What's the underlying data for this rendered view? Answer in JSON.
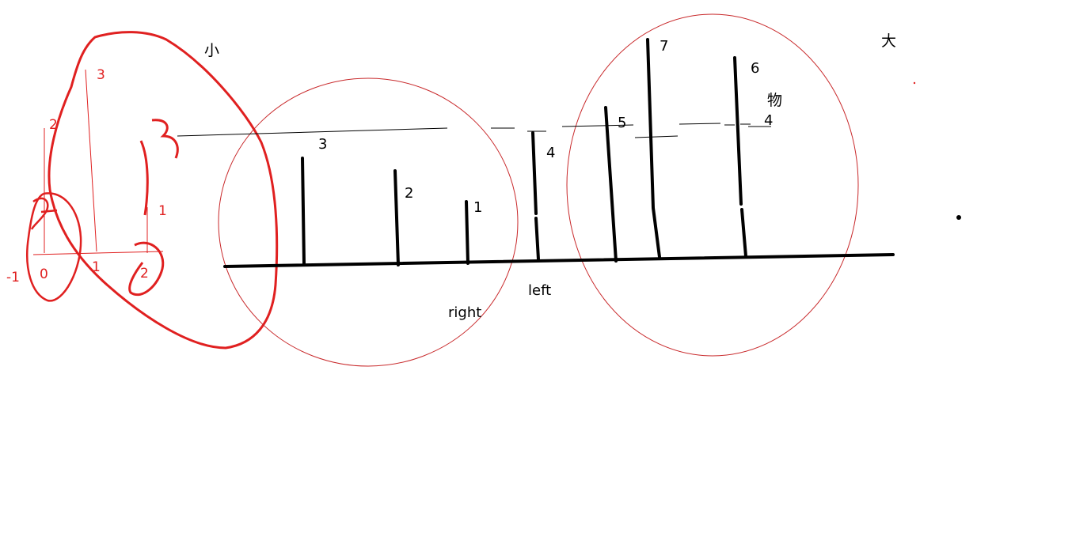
{
  "bar_labels": [
    "1",
    "2",
    "3",
    "4",
    "5",
    "6",
    "7"
  ],
  "bar_heights": [
    1,
    2,
    3,
    4,
    5,
    6,
    7
  ],
  "dashed_line_label": "4",
  "pointer_labels": [
    "right",
    "left"
  ],
  "chinese_labels": [
    "小",
    "大",
    "物"
  ],
  "inset_axis_x_labels": [
    "-1",
    "0",
    "1",
    "2"
  ],
  "inset_axis_y_labels": [
    "3",
    "2",
    "1"
  ],
  "inset_scribble_text": "3",
  "colors": {
    "ink": "#000000",
    "annotation": "#e02020",
    "circle": "#c8282a"
  }
}
